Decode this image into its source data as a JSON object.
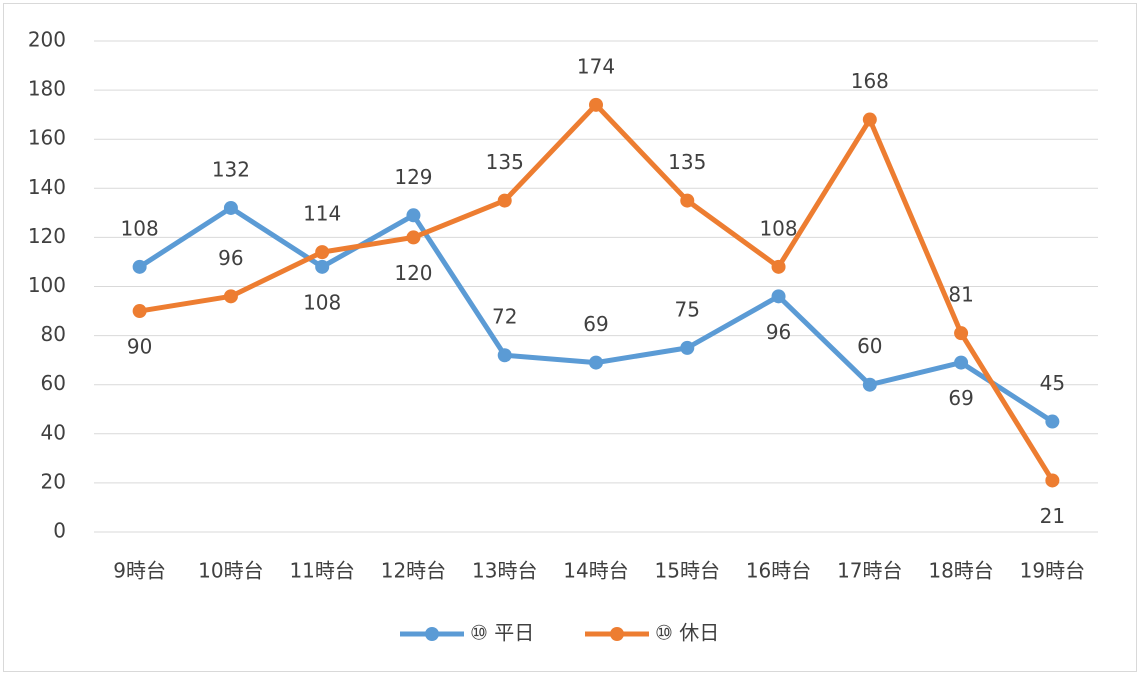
{
  "chart_data": {
    "type": "line",
    "categories": [
      "9時台",
      "10時台",
      "11時台",
      "12時台",
      "13時台",
      "14時台",
      "15時台",
      "16時台",
      "17時台",
      "18時台",
      "19時台"
    ],
    "series": [
      {
        "name": "⑩ 平日",
        "color": "#5b9bd5",
        "values": [
          108,
          132,
          108,
          129,
          72,
          69,
          75,
          96,
          60,
          69,
          45
        ]
      },
      {
        "name": "⑩ 休日",
        "color": "#ed7d31",
        "values": [
          90,
          96,
          114,
          120,
          135,
          174,
          135,
          108,
          168,
          81,
          21
        ]
      }
    ],
    "ylim": [
      0,
      200
    ],
    "yticks": [
      0,
      20,
      40,
      60,
      80,
      100,
      120,
      140,
      160,
      180,
      200
    ],
    "grid": true,
    "legend": "bottom",
    "data_labels": true
  }
}
